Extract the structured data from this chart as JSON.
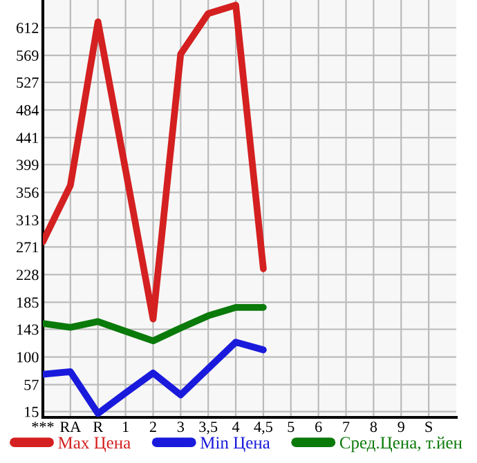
{
  "chart_data": {
    "type": "line",
    "categories": [
      "***",
      "RA",
      "R",
      "1",
      "2",
      "3",
      "3,5",
      "4",
      "4,5",
      "5",
      "6",
      "7",
      "8",
      "9",
      "S"
    ],
    "series": [
      {
        "name": "Max Цена",
        "color": "#d42020",
        "values": [
          279,
          367,
          621,
          391,
          159,
          571,
          634,
          647,
          237,
          null,
          null,
          null,
          null,
          null,
          null
        ]
      },
      {
        "name": "Min Цена",
        "color": "#1a1adc",
        "values": [
          73,
          77,
          12,
          44,
          75,
          41,
          82,
          123,
          111,
          null,
          null,
          null,
          null,
          null,
          null
        ]
      },
      {
        "name": "Сред.Цена, т.йен",
        "color": "#0a7a0a",
        "values": [
          152,
          146,
          155,
          140,
          125,
          145,
          164,
          177,
          177,
          null,
          null,
          null,
          null,
          null,
          null
        ]
      }
    ],
    "ylim": [
      6,
      655
    ],
    "yticks": [
      15,
      57,
      100,
      143,
      185,
      228,
      271,
      313,
      356,
      399,
      441,
      484,
      527,
      569,
      612
    ],
    "grid": true,
    "legend": "bottom",
    "marker": "none",
    "line_style": "solid"
  }
}
